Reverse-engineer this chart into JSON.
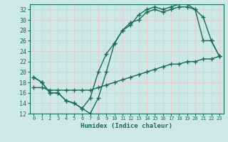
{
  "line1_x": [
    0,
    1,
    2,
    3,
    4,
    5,
    6,
    7,
    8,
    9,
    10,
    11,
    12,
    13,
    14,
    15,
    16,
    17,
    18,
    19,
    20,
    21,
    22,
    23
  ],
  "line1_y": [
    19,
    18,
    16,
    16,
    14.5,
    14,
    13,
    15,
    20,
    23.5,
    25.5,
    28,
    29,
    31,
    32,
    32.5,
    32,
    32.5,
    33,
    33,
    32,
    26,
    26,
    23
  ],
  "line2_x": [
    0,
    1,
    2,
    3,
    4,
    5,
    6,
    7,
    8,
    9,
    10,
    11,
    12,
    13,
    14,
    15,
    16,
    17,
    18,
    19,
    20,
    21,
    22,
    23
  ],
  "line2_y": [
    19,
    18,
    16,
    16,
    14.5,
    14,
    13,
    12,
    15,
    20,
    25.5,
    28,
    29.5,
    30,
    31.5,
    32,
    31.5,
    32,
    32.5,
    32.5,
    32,
    30.5,
    26,
    23
  ],
  "line3_x": [
    0,
    1,
    2,
    3,
    4,
    5,
    6,
    7,
    8,
    9,
    10,
    11,
    12,
    13,
    14,
    15,
    16,
    17,
    18,
    19,
    20,
    21,
    22,
    23
  ],
  "line3_y": [
    17,
    17,
    16.5,
    16.5,
    16.5,
    16.5,
    16.5,
    16.5,
    17,
    17.5,
    18,
    18.5,
    19,
    19.5,
    20,
    20.5,
    21,
    21.5,
    21.5,
    22,
    22,
    22.5,
    22.5,
    23
  ],
  "color": "#1a6b5a",
  "bg_color": "#cce8e8",
  "grid_color": "#b8d8d8",
  "xlabel": "Humidex (Indice chaleur)",
  "ylim": [
    12,
    33
  ],
  "xlim": [
    -0.5,
    23.5
  ],
  "yticks": [
    12,
    14,
    16,
    18,
    20,
    22,
    24,
    26,
    28,
    30,
    32
  ],
  "xticks": [
    0,
    1,
    2,
    3,
    4,
    5,
    6,
    7,
    8,
    9,
    10,
    11,
    12,
    13,
    14,
    15,
    16,
    17,
    18,
    19,
    20,
    21,
    22,
    23
  ],
  "marker": "+",
  "markersize": 4,
  "linewidth": 1.0
}
